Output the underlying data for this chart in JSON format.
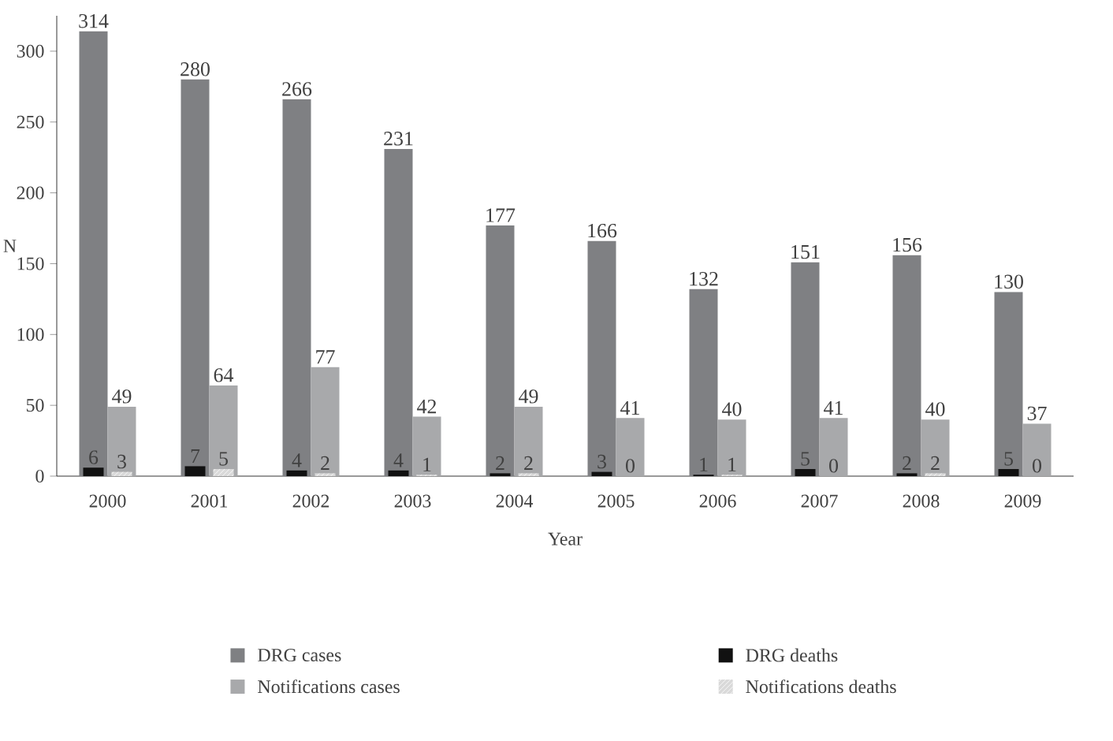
{
  "chart_data": {
    "type": "bar",
    "xlabel": "Year",
    "ylabel": "N",
    "categories": [
      "2000",
      "2001",
      "2002",
      "2003",
      "2004",
      "2005",
      "2006",
      "2007",
      "2008",
      "2009"
    ],
    "series": [
      {
        "name": "DRG cases",
        "color": "#7f8083",
        "values": [
          314,
          280,
          266,
          231,
          177,
          166,
          132,
          151,
          156,
          130
        ]
      },
      {
        "name": "DRG deaths",
        "color": "#111111",
        "values": [
          6,
          7,
          4,
          4,
          2,
          3,
          1,
          5,
          2,
          5
        ]
      },
      {
        "name": "Notifications cases",
        "color": "#a8a9ab",
        "values": [
          49,
          64,
          77,
          42,
          49,
          41,
          40,
          41,
          40,
          37
        ]
      },
      {
        "name": "Notifications deaths",
        "color": "#d9d9d9",
        "values": [
          3,
          5,
          2,
          1,
          2,
          0,
          1,
          0,
          2,
          0
        ]
      }
    ],
    "ylim": [
      0,
      325
    ],
    "yticks": [
      0,
      50,
      100,
      150,
      200,
      250,
      300
    ],
    "data_labels": true,
    "legend": "bottom"
  }
}
